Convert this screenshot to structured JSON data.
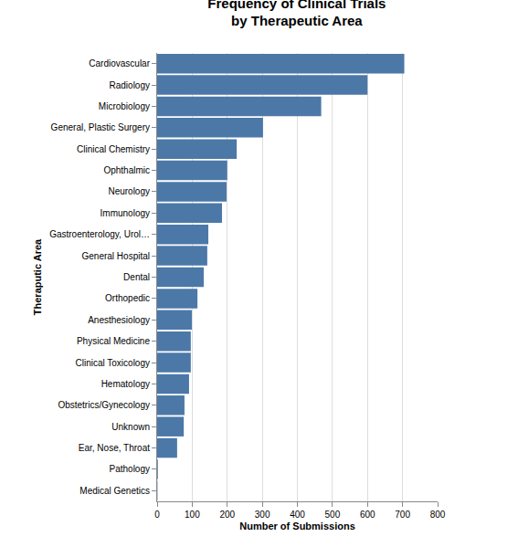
{
  "chart_data": {
    "type": "bar",
    "orientation": "horizontal",
    "title": "Frequency of Clinical Trials\nby Therapeutic Area",
    "x_label": "Number of Submissions",
    "y_label": "Theraputic Area",
    "categories": [
      "Cardiovascular",
      "Radiology",
      "Microbiology",
      "General, Plastic Surgery",
      "Clinical Chemistry",
      "Ophthalmic",
      "Neurology",
      "Immunology",
      "Gastroenterology, Urol…",
      "General Hospital",
      "Dental",
      "Orthopedic",
      "Anesthesiology",
      "Physical Medicine",
      "Clinical Toxicology",
      "Hematology",
      "Obstetrics/Gynecology",
      "Unknown",
      "Ear, Nose, Throat",
      "Pathology",
      "Medical Genetics"
    ],
    "values": [
      705,
      600,
      468,
      302,
      227,
      200,
      198,
      185,
      146,
      143,
      133,
      115,
      99,
      96,
      96,
      91,
      78,
      76,
      57,
      2,
      1
    ],
    "color": "#4c78a8",
    "xlim": [
      0,
      800
    ],
    "xticks": [
      0,
      100,
      200,
      300,
      400,
      500,
      600,
      700,
      800
    ],
    "grid": true
  }
}
